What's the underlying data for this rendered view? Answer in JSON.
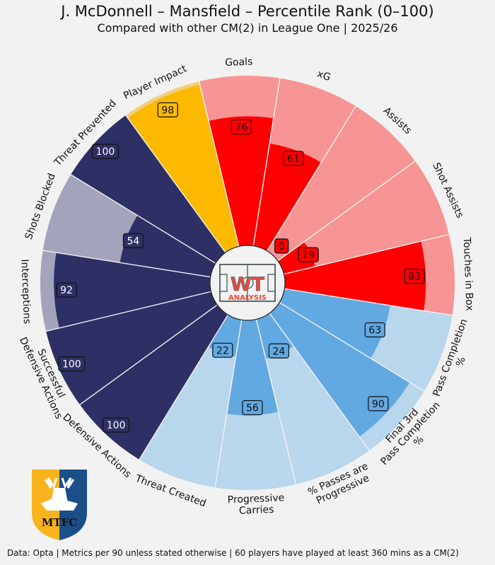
{
  "title": "J. McDonnell – Mansfield – Percentile Rank (0–100)",
  "subtitle": "Compared with other CM(2) in League One | 2025/26",
  "footer": "Data: Opta | Metrics per 90 unless stated otherwise | 60 players have played at least 360 mins as a CM(2)",
  "center_logo": {
    "line1": "WT",
    "line2": "ANALYSIS"
  },
  "club_crest": {
    "letters": "MTFC"
  },
  "colors": {
    "background": "#f2f2f2",
    "attack": "#ff0000",
    "attack_bg": "#f79494",
    "passing": "#62a9e2",
    "passing_bg": "#b8d6ec",
    "defence": "#2e2f64",
    "defence_bg": "#a3a4bb",
    "impact": "#fcb900",
    "impact_bg": "#efcf7c"
  },
  "chart_data": {
    "type": "polar-bar",
    "title": "J. McDonnell – Mansfield – Percentile Rank (0–100)",
    "subtitle": "Compared with other CM(2) in League One | 2025/26",
    "rlim": [
      0,
      100
    ],
    "categories": [
      "Goals",
      "xG",
      "Assists",
      "Shot Assists",
      "Touches in Box",
      "Pass Completion\n%",
      "Final 3rd\nPass Completion\n%",
      "% Passes are\nProgressive",
      "Progressive\nCarries",
      "Threat Created",
      "Defensive Actions",
      "Successful\nDefensive Actions",
      "Interceptions",
      "Shots Blocked",
      "Threat Prevented",
      "Player Impact"
    ],
    "values": [
      76,
      61,
      0,
      19,
      83,
      63,
      90,
      24,
      56,
      22,
      100,
      100,
      92,
      54,
      100,
      98
    ],
    "groups": [
      "attack",
      "attack",
      "attack",
      "attack",
      "attack",
      "passing",
      "passing",
      "passing",
      "passing",
      "passing",
      "defence",
      "defence",
      "defence",
      "defence",
      "defence",
      "impact"
    ]
  }
}
